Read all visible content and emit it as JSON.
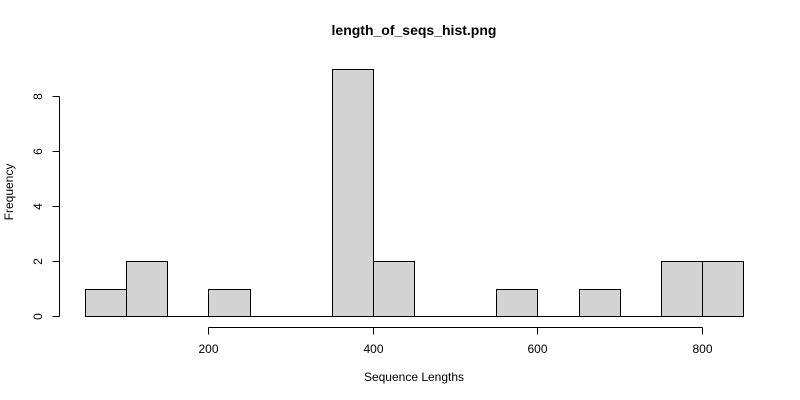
{
  "chart_data": {
    "type": "bar",
    "title": "length_of_seqs_hist.png",
    "xlabel": "Sequence Lengths",
    "ylabel": "Frequency",
    "bins": [
      {
        "start": 50,
        "end": 100,
        "count": 1
      },
      {
        "start": 100,
        "end": 150,
        "count": 2
      },
      {
        "start": 150,
        "end": 200,
        "count": 0
      },
      {
        "start": 200,
        "end": 250,
        "count": 1
      },
      {
        "start": 250,
        "end": 300,
        "count": 0
      },
      {
        "start": 300,
        "end": 350,
        "count": 0
      },
      {
        "start": 350,
        "end": 400,
        "count": 9
      },
      {
        "start": 400,
        "end": 450,
        "count": 2
      },
      {
        "start": 450,
        "end": 500,
        "count": 0
      },
      {
        "start": 500,
        "end": 550,
        "count": 0
      },
      {
        "start": 550,
        "end": 600,
        "count": 1
      },
      {
        "start": 600,
        "end": 650,
        "count": 0
      },
      {
        "start": 650,
        "end": 700,
        "count": 1
      },
      {
        "start": 700,
        "end": 750,
        "count": 0
      },
      {
        "start": 750,
        "end": 800,
        "count": 2
      },
      {
        "start": 800,
        "end": 850,
        "count": 2
      }
    ],
    "xticks": [
      200,
      400,
      600,
      800
    ],
    "yticks": [
      0,
      2,
      4,
      6,
      8
    ],
    "xlim": [
      50,
      850
    ],
    "ylim": [
      0,
      9
    ],
    "grid": false,
    "bar_color": "#d3d3d3",
    "edge_color": "#000000"
  }
}
